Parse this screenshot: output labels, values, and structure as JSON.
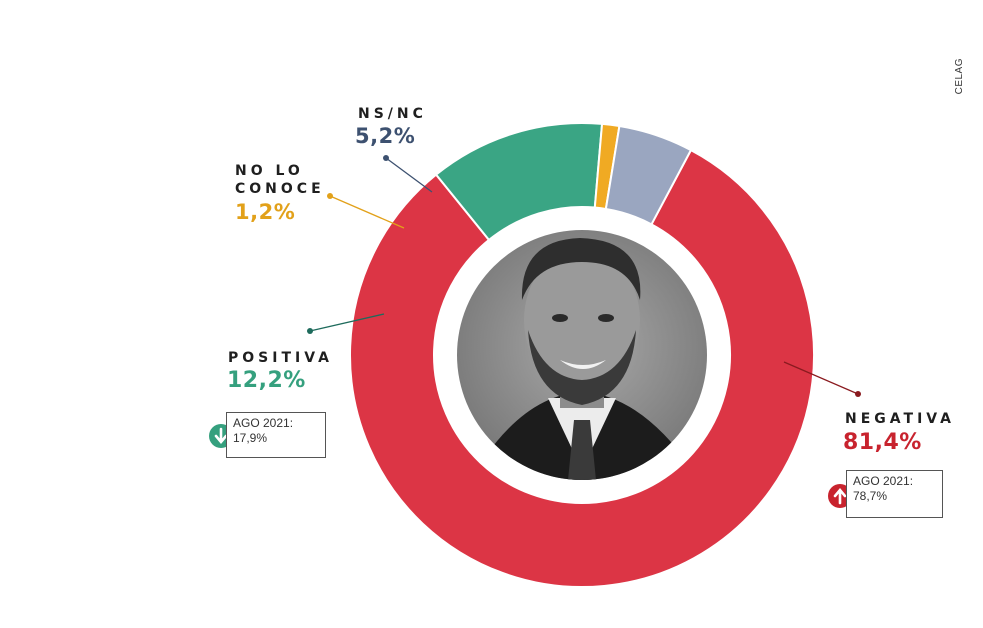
{
  "source": "CELAG",
  "chart_data": {
    "type": "pie",
    "subtype": "donut",
    "start": "top-right, clockwise",
    "slices": [
      {
        "label": "NEGATIVA",
        "value": 81.4,
        "value_label": "81,4%",
        "color": "#dc3545",
        "comparison": {
          "label": "AGO 2021:",
          "value": 78.7,
          "value_label": "78,7%",
          "trend": "up"
        }
      },
      {
        "label": "POSITIVA",
        "value": 12.2,
        "value_label": "12,2%",
        "color": "#3aa584",
        "comparison": {
          "label": "AGO 2021:",
          "value": 17.9,
          "value_label": "17,9%",
          "trend": "down"
        }
      },
      {
        "label": "NO LO CONOCE",
        "value": 1.2,
        "value_label": "1,2%",
        "color": "#f0aa23"
      },
      {
        "label": "NS/NC",
        "value": 5.2,
        "value_label": "5,2%",
        "color": "#9aa6c0"
      }
    ]
  },
  "labels": {
    "nsnc_name": "NS/NC",
    "nsnc_value": "5,2%",
    "nlc_name_line1": "NO LO",
    "nlc_name_line2": "CONOCE",
    "nlc_value": "1,2%",
    "pos_name": "POSITIVA",
    "pos_value": "12,2%",
    "pos_cmp_label": "AGO 2021:",
    "pos_cmp_value": "17,9%",
    "neg_name": "NEGATIVA",
    "neg_value": "81,4%",
    "neg_cmp_label": "AGO 2021:",
    "neg_cmp_value": "78,7%"
  },
  "colors": {
    "nsnc_text": "#3d5170",
    "nlc_text": "#e2a11a",
    "pos_text": "#35a07e",
    "neg_text": "#c8232e",
    "leader_nsnc": "#3d5170",
    "leader_nlc": "#e2a11a",
    "leader_pos": "#1e6b5c",
    "leader_neg": "#8a1a1f"
  }
}
